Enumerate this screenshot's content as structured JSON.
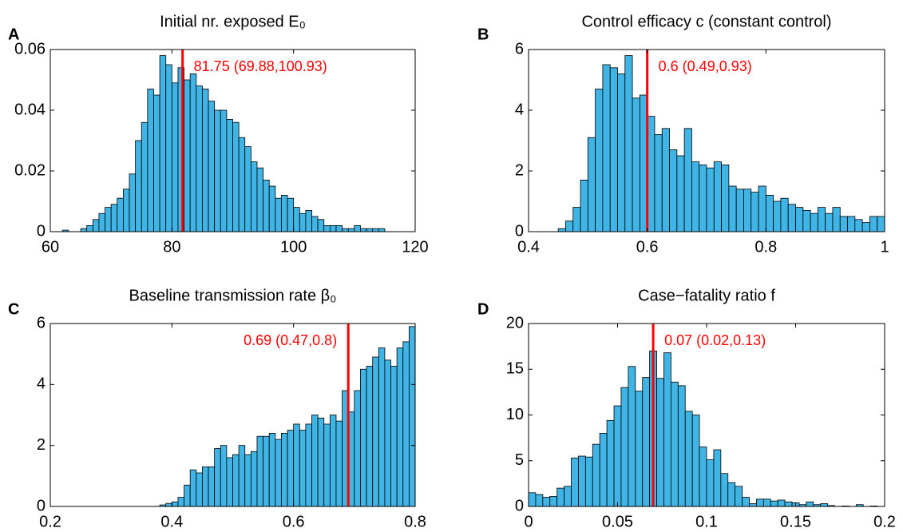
{
  "chart_data": [
    {
      "type": "histogram",
      "panel_label": "A",
      "title": "Initial nr. exposed E₀",
      "bins": [
        62,
        63,
        64,
        65,
        66,
        67,
        68,
        69,
        70,
        71,
        72,
        73,
        74,
        75,
        76,
        77,
        78,
        79,
        80,
        81,
        82,
        83,
        84,
        85,
        86,
        87,
        88,
        89,
        90,
        91,
        92,
        93,
        94,
        95,
        96,
        97,
        98,
        99,
        100,
        101,
        102,
        103,
        104,
        105,
        106,
        107,
        108,
        109,
        110,
        111,
        112,
        113,
        114,
        115
      ],
      "counts": [
        0.0005,
        0,
        0,
        0.001,
        0.002,
        0.004,
        0.006,
        0.008,
        0.009,
        0.011,
        0.014,
        0.019,
        0.03,
        0.036,
        0.047,
        0.045,
        0.058,
        0.055,
        0.049,
        0.054,
        0.05,
        0.052,
        0.048,
        0.047,
        0.043,
        0.04,
        0.04,
        0.037,
        0.036,
        0.031,
        0.028,
        0.023,
        0.021,
        0.017,
        0.015,
        0.011,
        0.012,
        0.011,
        0.008,
        0.006,
        0.007,
        0.005,
        0.004,
        0.002,
        0.002,
        0.002,
        0.001,
        0.001,
        0.002,
        0.001,
        0.001,
        0.001,
        0.001
      ],
      "color": "#3fb4e5",
      "median": 81.75,
      "line_color": "#ff0000",
      "annotation": "81.75 (69.88,100.93)",
      "xlim": [
        60,
        120
      ],
      "xticks": [
        60,
        80,
        100,
        120
      ],
      "ylim": [
        0,
        0.06
      ],
      "yticks": [
        0,
        0.02,
        0.04,
        0.06
      ]
    },
    {
      "type": "histogram",
      "panel_label": "B",
      "title": "Control efficacy c (constant control)",
      "bins": [
        0.45,
        0.4625,
        0.475,
        0.4875,
        0.5,
        0.5125,
        0.525,
        0.5375,
        0.55,
        0.5625,
        0.575,
        0.5875,
        0.6,
        0.6125,
        0.625,
        0.6375,
        0.65,
        0.6625,
        0.675,
        0.6875,
        0.7,
        0.7125,
        0.725,
        0.7375,
        0.75,
        0.7625,
        0.775,
        0.7875,
        0.8,
        0.8125,
        0.825,
        0.8375,
        0.85,
        0.8625,
        0.875,
        0.8875,
        0.9,
        0.9125,
        0.925,
        0.9375,
        0.95,
        0.9625,
        0.975,
        0.9875,
        1
      ],
      "counts": [
        0.1,
        0.35,
        0.8,
        1.7,
        3.1,
        4.7,
        5.5,
        5.4,
        5.2,
        5.8,
        4.4,
        4.5,
        3.8,
        3.2,
        3.4,
        2.7,
        2.5,
        3.4,
        2.3,
        2.2,
        2.1,
        2.3,
        2.2,
        1.5,
        1.4,
        1.4,
        1.3,
        1.5,
        1.2,
        1.0,
        1.1,
        0.9,
        0.8,
        0.7,
        0.6,
        0.8,
        0.6,
        0.8,
        0.5,
        0.5,
        0.4,
        0.3,
        0.5,
        0.5
      ],
      "color": "#3fb4e5",
      "median": 0.6,
      "line_color": "#ff0000",
      "annotation": "0.6 (0.49,0.93)",
      "xlim": [
        0.4,
        1
      ],
      "xticks": [
        0.4,
        0.6,
        0.8,
        1
      ],
      "ylim": [
        0,
        6
      ],
      "yticks": [
        0,
        2,
        4,
        6
      ]
    },
    {
      "type": "histogram",
      "panel_label": "C",
      "title": "Baseline transmission rate β₀",
      "bins": [
        0.38,
        0.39,
        0.4,
        0.41,
        0.42,
        0.43,
        0.44,
        0.45,
        0.46,
        0.47,
        0.48,
        0.49,
        0.5,
        0.51,
        0.52,
        0.53,
        0.54,
        0.55,
        0.56,
        0.57,
        0.58,
        0.59,
        0.6,
        0.61,
        0.62,
        0.63,
        0.64,
        0.65,
        0.66,
        0.67,
        0.68,
        0.69,
        0.7,
        0.71,
        0.72,
        0.73,
        0.74,
        0.75,
        0.76,
        0.77,
        0.78,
        0.79,
        0.8
      ],
      "counts": [
        0.05,
        0.1,
        0.15,
        0.3,
        0.7,
        1.2,
        1.1,
        1.3,
        1.3,
        1.9,
        2.0,
        1.6,
        1.7,
        2.0,
        1.7,
        1.8,
        2.3,
        2.3,
        2.4,
        2.2,
        2.4,
        2.5,
        2.7,
        2.5,
        2.7,
        3.0,
        2.9,
        2.7,
        3.0,
        2.8,
        3.8,
        3.1,
        3.8,
        4.5,
        4.6,
        4.9,
        5.2,
        4.8,
        4.6,
        5.2,
        5.4,
        5.9
      ],
      "color": "#3fb4e5",
      "median": 0.69,
      "line_color": "#ff0000",
      "annotation": "0.69 (0.47,0.8)",
      "xlim": [
        0.2,
        0.8
      ],
      "xticks": [
        0.2,
        0.4,
        0.6,
        0.8
      ],
      "ylim": [
        0,
        6
      ],
      "yticks": [
        0,
        2,
        4,
        6
      ]
    },
    {
      "type": "histogram",
      "panel_label": "D",
      "title": "Case−fatality ratio f",
      "bins": [
        0,
        0.004,
        0.008,
        0.012,
        0.016,
        0.02,
        0.024,
        0.028,
        0.032,
        0.036,
        0.04,
        0.044,
        0.048,
        0.052,
        0.056,
        0.06,
        0.064,
        0.068,
        0.072,
        0.076,
        0.08,
        0.084,
        0.088,
        0.092,
        0.096,
        0.1,
        0.104,
        0.108,
        0.112,
        0.116,
        0.12,
        0.124,
        0.128,
        0.132,
        0.136,
        0.14,
        0.144,
        0.148,
        0.152,
        0.156,
        0.16,
        0.164,
        0.168,
        0.172,
        0.176,
        0.18,
        0.184,
        0.188,
        0.192,
        0.196,
        0.2
      ],
      "counts": [
        1.5,
        1.3,
        1.0,
        1.1,
        2.0,
        2.2,
        5.3,
        5.5,
        5.4,
        6.8,
        8.0,
        9.4,
        11.0,
        13.0,
        15.3,
        12.6,
        14.1,
        17.0,
        14.0,
        16.8,
        13.6,
        13.2,
        10.4,
        10.0,
        6.5,
        5.1,
        6.2,
        3.6,
        2.6,
        2.2,
        1.0,
        0.3,
        0.8,
        0.8,
        0.6,
        0.7,
        0.5,
        0.4,
        0.2,
        0.5,
        0.2,
        0.3,
        0.1,
        0,
        0.05,
        0,
        0.2,
        0,
        0.05,
        0
      ],
      "color": "#3fb4e5",
      "median": 0.07,
      "line_color": "#ff0000",
      "annotation": "0.07 (0.02,0.13)",
      "xlim": [
        0,
        0.2
      ],
      "xticks": [
        0,
        0.05,
        0.1,
        0.15,
        0.2
      ],
      "ylim": [
        0,
        20
      ],
      "yticks": [
        0,
        5,
        10,
        15,
        20
      ]
    }
  ]
}
